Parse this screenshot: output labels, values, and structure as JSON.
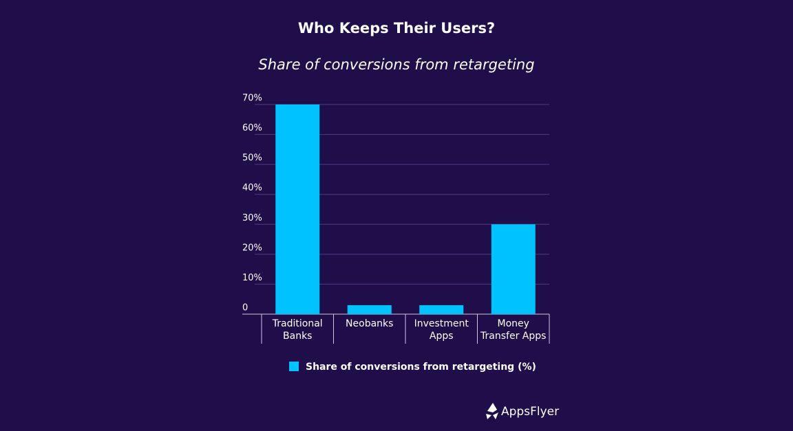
{
  "chart_data": {
    "type": "bar",
    "title": "Who Keeps Their Users?",
    "subtitle": "Share of conversions from retargeting",
    "categories": [
      "Traditional Banks",
      "Neobanks",
      "Investment Apps",
      "Money Transfer Apps"
    ],
    "series": [
      {
        "name": "Share of conversions from retargeting (%)",
        "color": "#00c2ff",
        "values": [
          70,
          3,
          3,
          30
        ]
      }
    ],
    "ylim": [
      0,
      70
    ],
    "yticks": [
      0,
      {
        "value": 10,
        "label": "10%"
      },
      {
        "value": 20,
        "label": "20%"
      },
      {
        "value": 30,
        "label": "30%"
      },
      {
        "value": 40,
        "label": "40%"
      },
      {
        "value": 50,
        "label": "50%"
      },
      {
        "value": 60,
        "label": "60%"
      },
      {
        "value": 70,
        "label": "70%"
      }
    ],
    "grid": true,
    "legend": "bottom",
    "logo": "AppsFlyer"
  }
}
